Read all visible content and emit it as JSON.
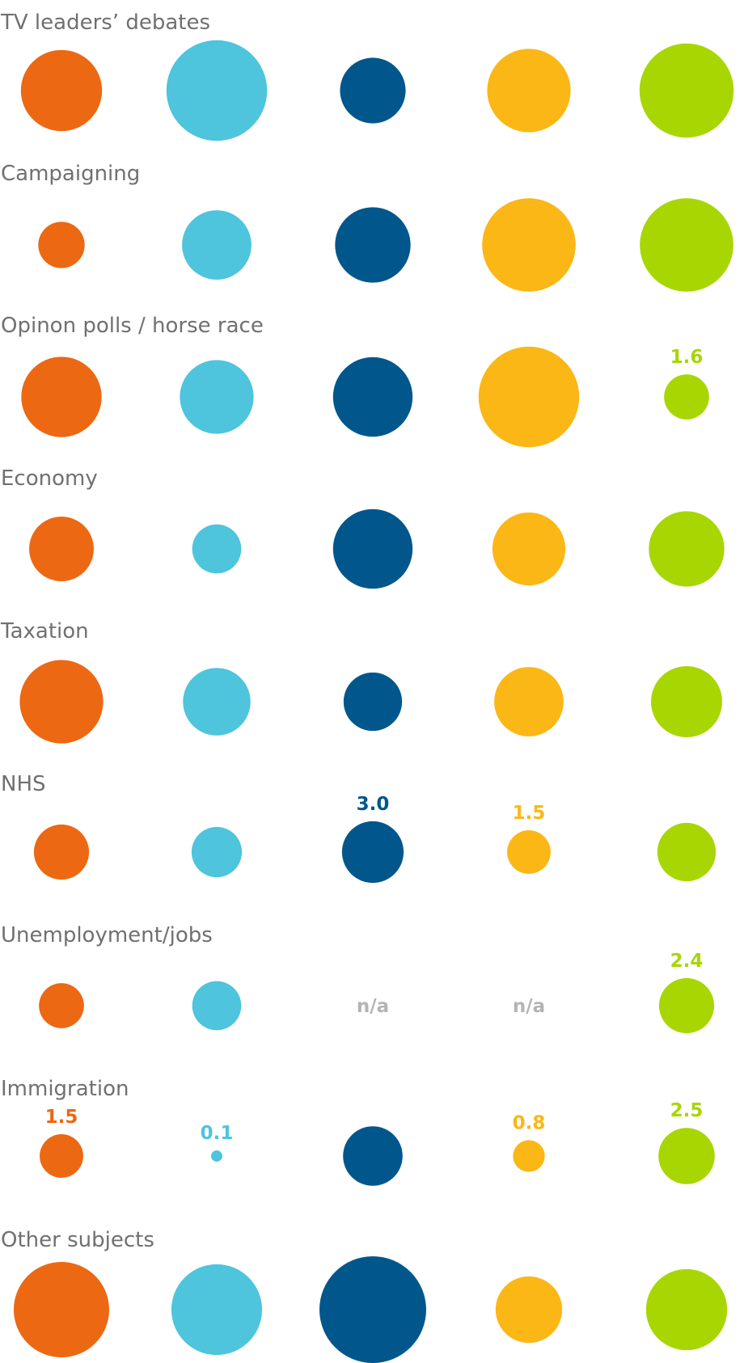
{
  "chart_data": {
    "type": "bubble-grid",
    "series_colors": [
      "#ec6813",
      "#4ec4dd",
      "#01578b",
      "#fbb716",
      "#a8d602"
    ],
    "rows": [
      {
        "title": "TV leaders’ debates",
        "values": [
          5.2,
          8.0,
          3.4,
          5.5,
          7.0
        ],
        "labels": [
          "",
          "",
          "",
          "",
          ""
        ]
      },
      {
        "title": "Campaigning",
        "values": [
          1.7,
          3.8,
          4.5,
          6.9,
          6.9
        ],
        "labels": [
          "",
          "",
          "",
          "",
          ""
        ]
      },
      {
        "title": "Opinon polls / horse race",
        "values": [
          5.1,
          4.3,
          5.0,
          8.0,
          1.6
        ],
        "labels": [
          "",
          "",
          "",
          "",
          "1.6"
        ]
      },
      {
        "title": "Economy",
        "values": [
          3.3,
          1.9,
          5.0,
          4.2,
          4.5
        ],
        "labels": [
          "",
          "",
          "",
          "",
          ""
        ]
      },
      {
        "title": "Taxation",
        "values": [
          5.5,
          3.6,
          2.7,
          3.8,
          4.0
        ],
        "labels": [
          "",
          "",
          "",
          "",
          ""
        ]
      },
      {
        "title": "NHS",
        "values": [
          2.4,
          2.0,
          3.0,
          1.5,
          2.7
        ],
        "labels": [
          "",
          "",
          "3.0",
          "1.5",
          ""
        ]
      },
      {
        "title": "Unemployment/jobs",
        "values": [
          1.6,
          1.9,
          null,
          null,
          2.4
        ],
        "labels": [
          "",
          "",
          "n/a",
          "n/a",
          "2.4"
        ]
      },
      {
        "title": "Immigration",
        "values": [
          1.5,
          0.1,
          2.8,
          0.8,
          2.5
        ],
        "labels": [
          "1.5",
          "0.1",
          "",
          "0.8",
          "2.5"
        ]
      },
      {
        "title": "Other subjects",
        "values": [
          7.2,
          6.5,
          9.0,
          3.5,
          5.2
        ],
        "labels": [
          "",
          "",
          "",
          "",
          ""
        ]
      }
    ]
  }
}
